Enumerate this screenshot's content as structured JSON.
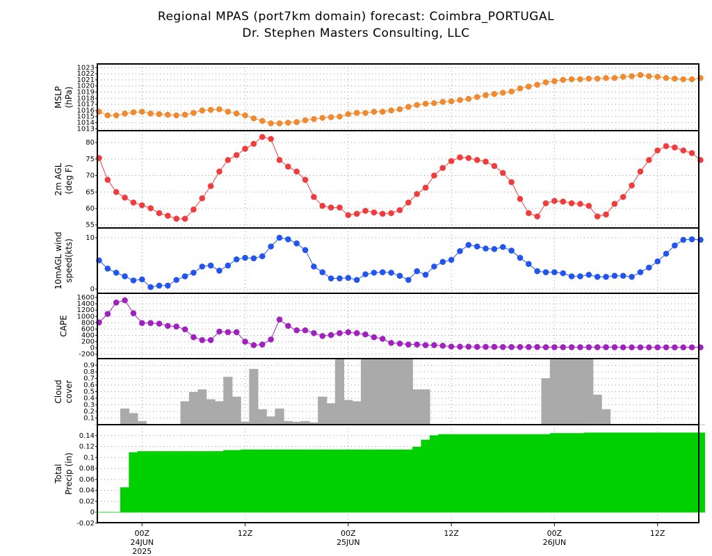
{
  "chart_data": {
    "type": "meteogram",
    "title": "Regional MPAS (port7km domain) forecast: Coimbra_PORTUGAL",
    "subtitle": "Dr. Stephen Masters Consulting, LLC",
    "x": [
      -5,
      -4,
      -3,
      -2,
      -1,
      0,
      1,
      2,
      3,
      4,
      5,
      6,
      7,
      8,
      9,
      10,
      11,
      12,
      13,
      14,
      15,
      16,
      17,
      18,
      19,
      20,
      21,
      22,
      23,
      24,
      25,
      26,
      27,
      28,
      29,
      30,
      31,
      32,
      33,
      34,
      35,
      36,
      37,
      38,
      39,
      40,
      41,
      42,
      43,
      44,
      45,
      46,
      47,
      48,
      49,
      50,
      51,
      52,
      53,
      54,
      55,
      56,
      57,
      58,
      59,
      60,
      61,
      62,
      63,
      64,
      65
    ],
    "xlim": [
      -5.2,
      64.8
    ],
    "xticks": [
      {
        "value": 0,
        "label": "00Z"
      },
      {
        "value": 12,
        "label": "12Z"
      },
      {
        "value": 24,
        "label": "00Z"
      },
      {
        "value": 36,
        "label": "12Z"
      },
      {
        "value": 48,
        "label": "00Z"
      },
      {
        "value": 60,
        "label": "12Z"
      }
    ],
    "xdates": [
      {
        "value": 0,
        "label": "24JUN"
      },
      {
        "value": 24,
        "label": "25JUN"
      },
      {
        "value": 48,
        "label": "26JUN"
      }
    ],
    "year": {
      "value": 0,
      "label": "2025"
    },
    "grid": true,
    "panels": [
      {
        "type": "line",
        "ylabel": [
          "MSLP",
          "(hPa)"
        ],
        "color": "#f08a30",
        "ylim": [
          1012.7,
          1023.6
        ],
        "yticks": [
          1013,
          1014,
          1015,
          1016,
          1017,
          1018,
          1019,
          1020,
          1021,
          1022,
          1023
        ],
        "values": [
          1015.8,
          1015.2,
          1015.2,
          1015.5,
          1015.7,
          1015.8,
          1015.5,
          1015.4,
          1015.3,
          1015.2,
          1015.3,
          1015.6,
          1016.0,
          1016.1,
          1016.2,
          1015.8,
          1015.5,
          1015.2,
          1014.7,
          1014.3,
          1013.9,
          1013.9,
          1014.0,
          1014.1,
          1014.4,
          1014.6,
          1014.8,
          1014.9,
          1015.0,
          1015.4,
          1015.6,
          1015.6,
          1015.8,
          1015.8,
          1016.0,
          1016.2,
          1016.6,
          1016.9,
          1017.1,
          1017.2,
          1017.4,
          1017.5,
          1017.7,
          1017.9,
          1018.2,
          1018.5,
          1018.7,
          1018.9,
          1019.1,
          1019.6,
          1019.9,
          1020.2,
          1020.6,
          1020.8,
          1021.0,
          1021.1,
          1021.1,
          1021.2,
          1021.2,
          1021.3,
          1021.3,
          1021.5,
          1021.6,
          1021.8,
          1021.6,
          1021.5,
          1021.3,
          1021.2,
          1021.1,
          1021.1,
          1021.3
        ]
      },
      {
        "type": "line",
        "ylabel": [
          "2m AGL",
          "(deg F)"
        ],
        "color": "#f03c3c",
        "ylim": [
          54.1,
          83.6
        ],
        "yticks": [
          55,
          60,
          65,
          70,
          75,
          80
        ],
        "values": [
          75.3,
          68.7,
          65.0,
          63.3,
          61.8,
          61.0,
          60.1,
          58.6,
          57.8,
          56.9,
          56.9,
          59.7,
          63.1,
          66.8,
          71.2,
          74.7,
          76.2,
          78.1,
          79.6,
          81.7,
          81.1,
          74.7,
          72.7,
          71.2,
          68.7,
          63.5,
          60.8,
          60.3,
          60.3,
          58.0,
          58.4,
          59.3,
          58.8,
          58.4,
          58.6,
          59.5,
          61.8,
          64.4,
          66.3,
          70.0,
          72.3,
          74.4,
          75.5,
          75.3,
          74.7,
          74.2,
          72.9,
          70.8,
          68.0,
          62.9,
          58.6,
          57.6,
          61.6,
          62.3,
          62.1,
          61.6,
          61.4,
          60.8,
          57.6,
          58.2,
          61.4,
          63.5,
          67.0,
          71.2,
          74.7,
          77.6,
          78.9,
          78.5,
          77.6,
          76.8,
          74.7
        ]
      },
      {
        "type": "line",
        "ylabel": [
          "10mAGL wind",
          "speed(kts)"
        ],
        "color": "#2255ee",
        "ylim": [
          -0.8,
          11.9
        ],
        "yticks": [
          0,
          10
        ],
        "values": [
          5.6,
          4.0,
          3.2,
          2.5,
          1.7,
          1.9,
          0.4,
          0.7,
          0.7,
          1.8,
          2.5,
          3.2,
          4.4,
          4.6,
          3.6,
          4.6,
          5.8,
          6.1,
          6.0,
          6.4,
          8.3,
          10.0,
          9.7,
          8.9,
          7.6,
          4.4,
          3.3,
          2.1,
          2.1,
          2.2,
          1.8,
          2.9,
          3.2,
          3.3,
          3.2,
          2.6,
          1.8,
          3.5,
          2.8,
          4.4,
          5.3,
          5.7,
          7.4,
          8.6,
          8.3,
          7.9,
          7.8,
          8.2,
          7.5,
          6.1,
          4.9,
          3.5,
          3.3,
          3.3,
          3.1,
          2.5,
          2.5,
          2.8,
          2.4,
          2.4,
          2.6,
          2.6,
          2.4,
          3.3,
          4.2,
          5.4,
          6.9,
          8.5,
          9.6,
          9.7,
          9.6
        ]
      },
      {
        "type": "line",
        "ylabel": [
          "CAPE"
        ],
        "color": "#a020c0",
        "ylim": [
          -338,
          1733
        ],
        "yticks": [
          -200,
          0,
          200,
          400,
          600,
          800,
          1000,
          1200,
          1400,
          1600
        ],
        "values": [
          810,
          1080,
          1440,
          1510,
          1100,
          790,
          790,
          770,
          700,
          680,
          590,
          340,
          250,
          250,
          520,
          500,
          500,
          200,
          90,
          110,
          270,
          900,
          700,
          560,
          560,
          470,
          380,
          410,
          470,
          500,
          470,
          430,
          340,
          290,
          160,
          140,
          110,
          110,
          90,
          90,
          70,
          45,
          40,
          40,
          35,
          35,
          35,
          30,
          30,
          30,
          30,
          30,
          25,
          25,
          25,
          25,
          25,
          25,
          25,
          25,
          25,
          20,
          20,
          20,
          20,
          20,
          20,
          20,
          20,
          20,
          20
        ]
      },
      {
        "type": "bar",
        "ylabel": [
          "Cloud",
          "cover"
        ],
        "color": "#aaaaaa",
        "ylim": [
          0,
          1
        ],
        "yticks": [
          0.1,
          0.2,
          0.3,
          0.4,
          0.5,
          0.6,
          0.7,
          0.8,
          0.9
        ],
        "values": [
          0,
          0,
          0,
          0.24,
          0.17,
          0.05,
          0,
          0,
          0,
          0,
          0.35,
          0.49,
          0.53,
          0.38,
          0.35,
          0.72,
          0.42,
          0.04,
          0.84,
          0.23,
          0.12,
          0.24,
          0.05,
          0.04,
          0.05,
          0.03,
          0.42,
          0.32,
          1.0,
          0.37,
          0.35,
          1.0,
          1.0,
          1.0,
          1.0,
          1.0,
          1.0,
          0.53,
          0.53,
          0,
          0,
          0,
          0,
          0,
          0,
          0,
          0,
          0,
          0,
          0,
          0,
          0,
          0.7,
          1.0,
          1.0,
          1.0,
          1.0,
          1.0,
          0.45,
          0.23,
          0,
          0,
          0,
          0,
          0,
          0,
          0,
          0,
          0,
          0,
          0
        ]
      },
      {
        "type": "bar",
        "ylabel": [
          "Total",
          "Precip (in)"
        ],
        "color": "#00d000",
        "ylim": [
          -0.019,
          0.16
        ],
        "yticks": [
          -0.02,
          0,
          0.02,
          0.04,
          0.06,
          0.08,
          0.1,
          0.12,
          0.14
        ],
        "values": [
          0,
          0,
          0,
          0.045,
          0.109,
          0.111,
          0.111,
          0.111,
          0.111,
          0.111,
          0.111,
          0.111,
          0.111,
          0.111,
          0.111,
          0.113,
          0.113,
          0.114,
          0.114,
          0.114,
          0.114,
          0.114,
          0.114,
          0.114,
          0.114,
          0.114,
          0.114,
          0.114,
          0.114,
          0.114,
          0.114,
          0.114,
          0.114,
          0.114,
          0.114,
          0.114,
          0.114,
          0.119,
          0.132,
          0.14,
          0.142,
          0.142,
          0.142,
          0.142,
          0.142,
          0.142,
          0.142,
          0.142,
          0.142,
          0.142,
          0.142,
          0.142,
          0.142,
          0.144,
          0.144,
          0.144,
          0.144,
          0.145,
          0.145,
          0.145,
          0.145,
          0.145,
          0.145,
          0.145,
          0.145,
          0.145,
          0.145,
          0.145,
          0.145,
          0.145,
          0.145
        ]
      }
    ]
  }
}
